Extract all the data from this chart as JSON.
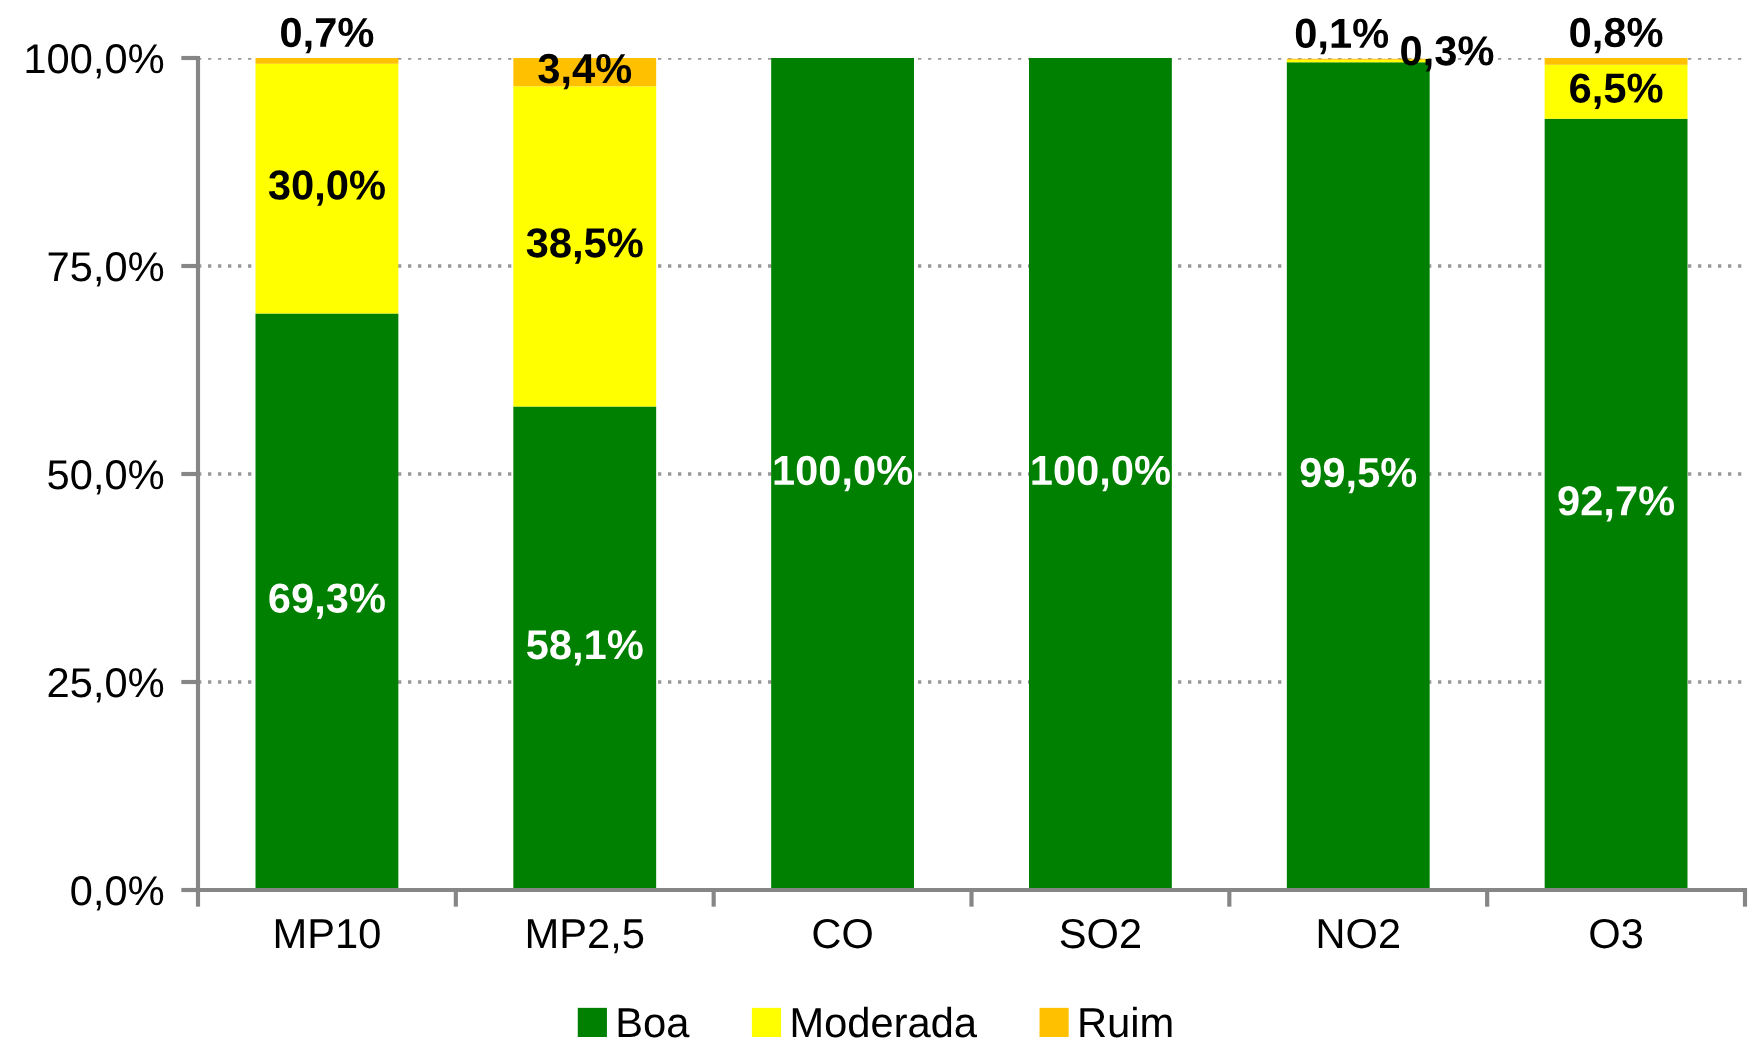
{
  "chart_data": {
    "type": "bar",
    "stacked": true,
    "categories": [
      "MP10",
      "MP2,5",
      "CO",
      "SO2",
      "NO2",
      "O3"
    ],
    "series": [
      {
        "name": "Boa",
        "color": "#008000",
        "values": [
          69.3,
          58.1,
          100.0,
          100.0,
          99.5,
          92.7
        ],
        "value_labels": [
          "69,3%",
          "58,1%",
          "100,0%",
          "100,0%",
          "99,5%",
          "92,7%"
        ]
      },
      {
        "name": "Moderada",
        "color": "#ffff00",
        "values": [
          30.0,
          38.5,
          0,
          0,
          0.3,
          6.5
        ],
        "value_labels": [
          "30,0%",
          "38,5%",
          null,
          null,
          "0,3%",
          "6,5%"
        ]
      },
      {
        "name": "Ruim",
        "color": "#ffc000",
        "values": [
          0.7,
          3.4,
          0,
          0,
          0.1,
          0.8
        ],
        "value_labels": [
          "0,7%",
          "3,4%",
          null,
          null,
          "0,1%",
          "0,8%"
        ]
      }
    ],
    "ylim": [
      0,
      100
    ],
    "yticks": [
      {
        "value": 0,
        "label": "0,0%"
      },
      {
        "value": 25,
        "label": "25,0%"
      },
      {
        "value": 50,
        "label": "50,0%"
      },
      {
        "value": 75,
        "label": "75,0%"
      },
      {
        "value": 100,
        "label": "100,0%"
      }
    ],
    "grid": "y",
    "legend": "bottom"
  }
}
